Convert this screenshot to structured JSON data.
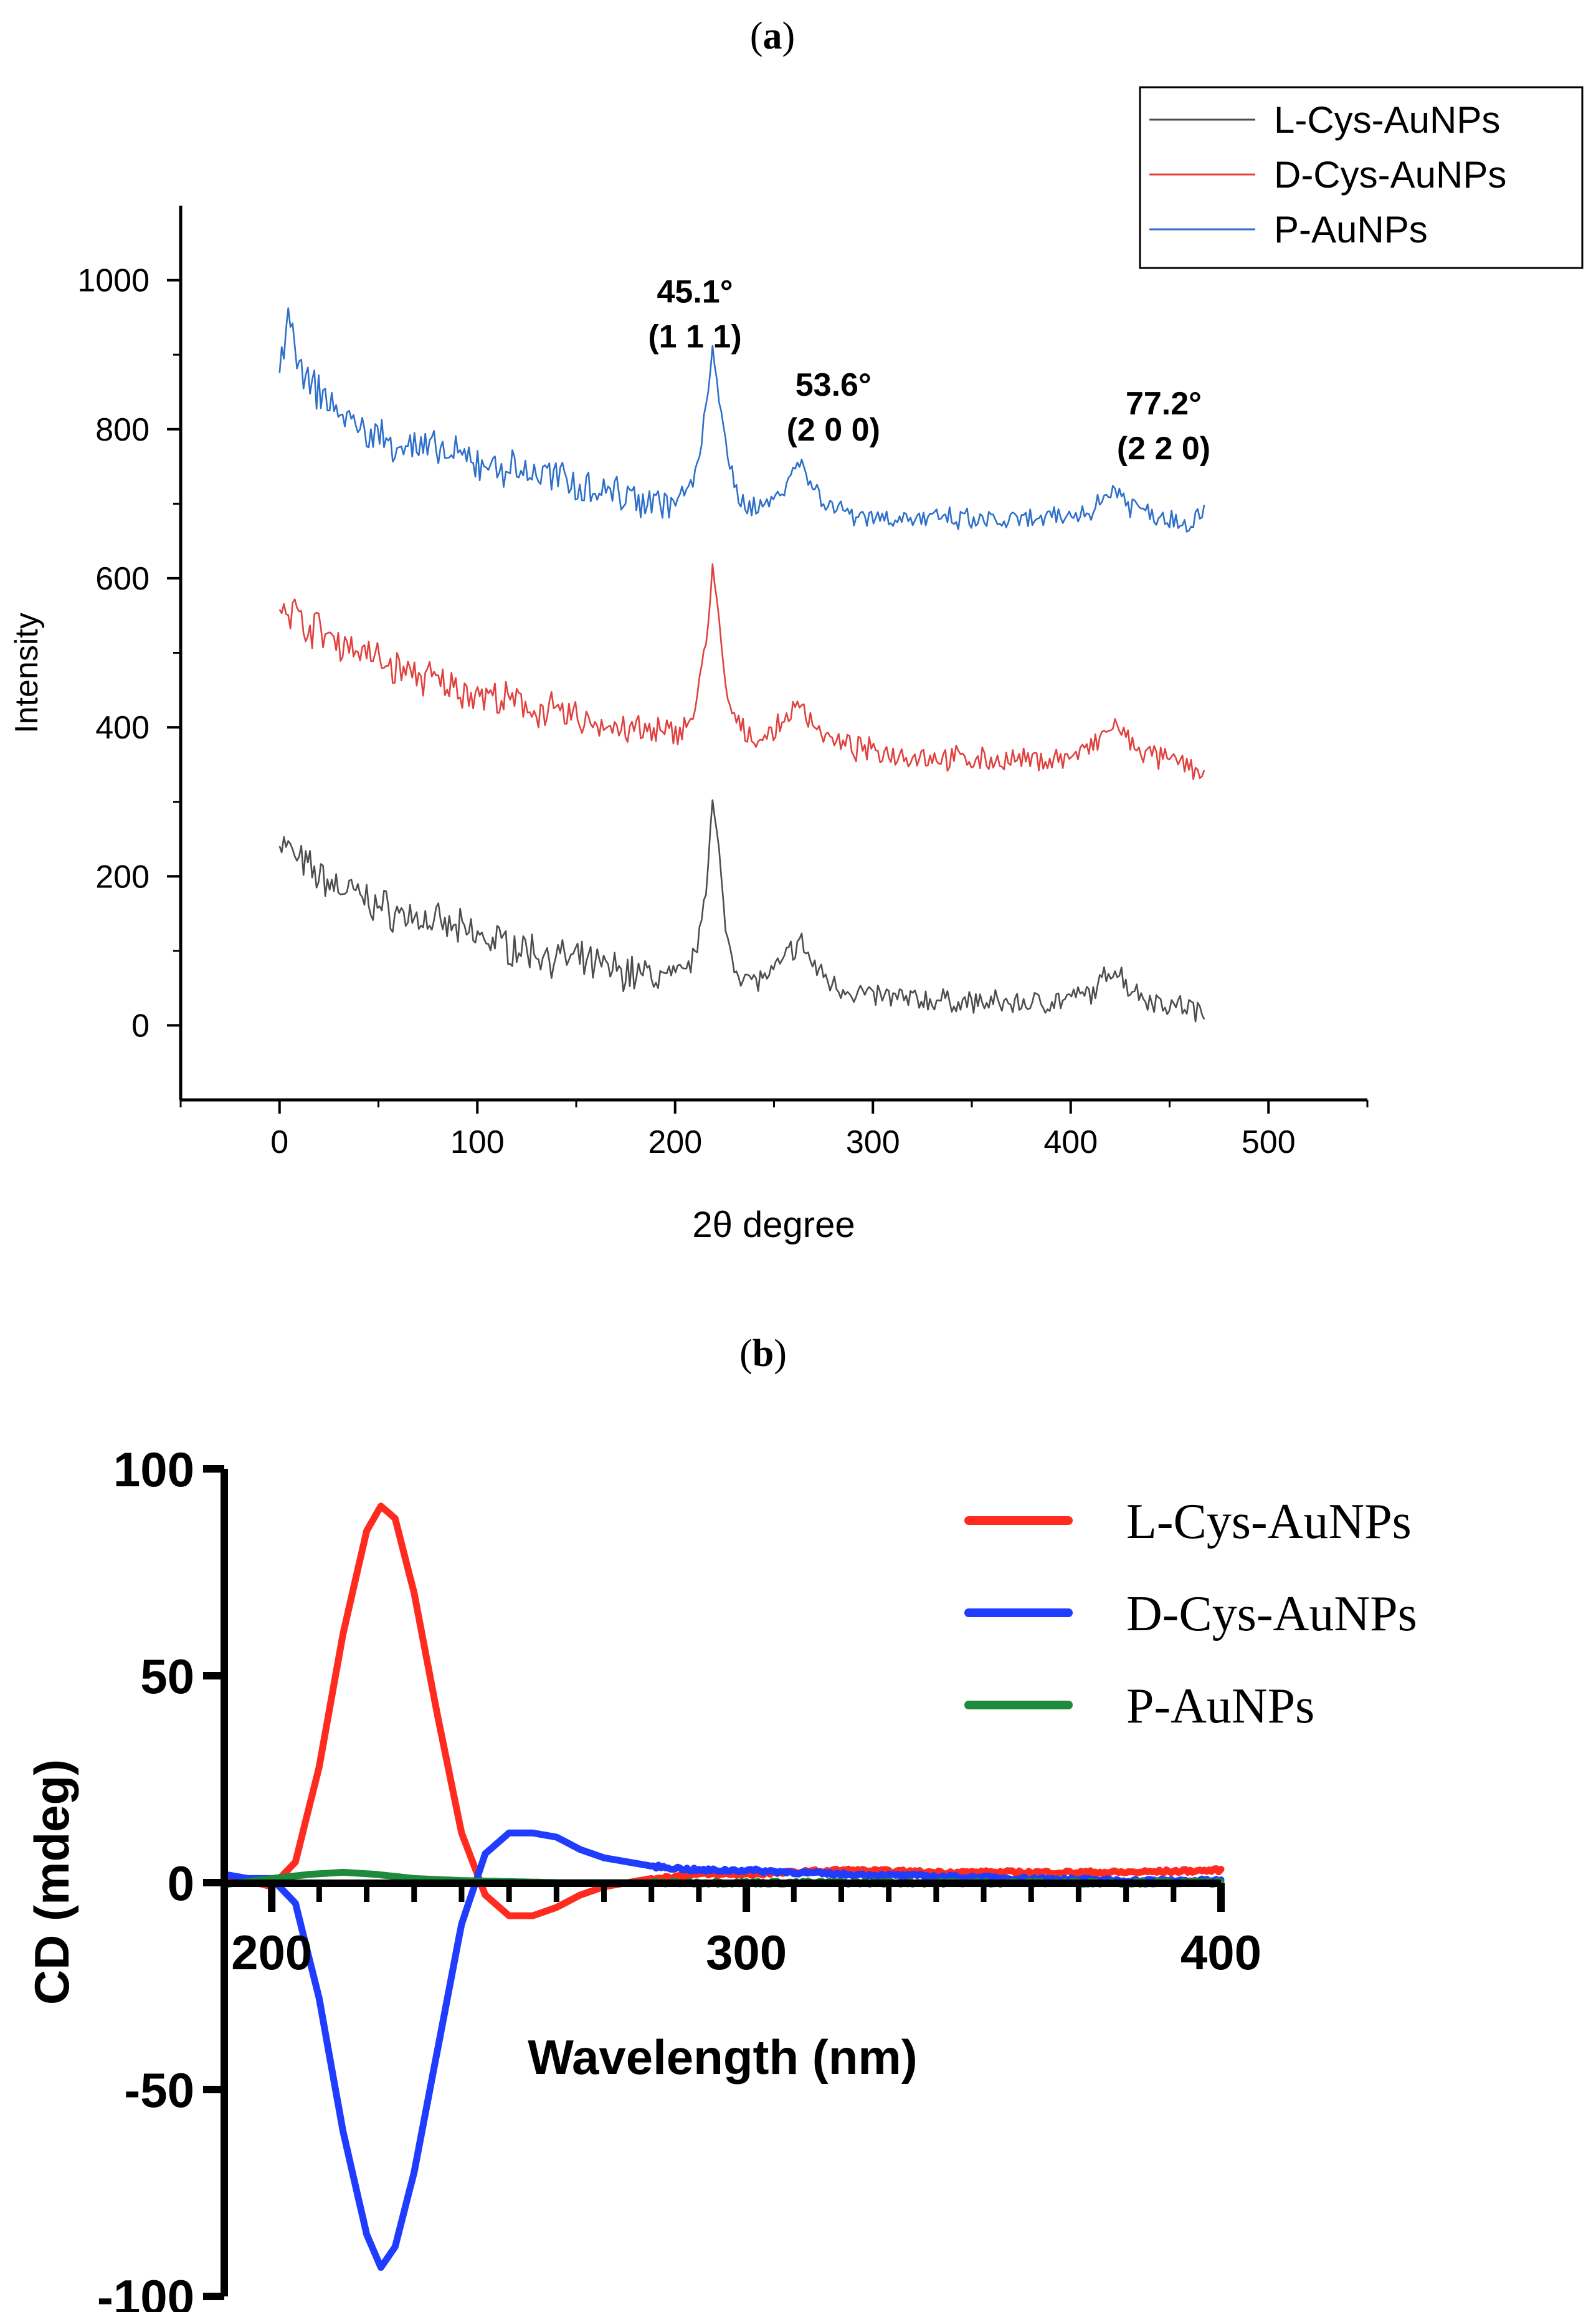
{
  "chart_data": [
    {
      "panel_label": "(a)",
      "panel_letter": "a",
      "type": "line",
      "xlabel": "2θ degree",
      "ylabel": "Intensity",
      "xlim": [
        -50,
        550
      ],
      "ylim": [
        -100,
        1100
      ],
      "x_ticks": [
        "0",
        "100",
        "200",
        "300",
        "400",
        "500"
      ],
      "y_ticks": [
        "0",
        "200",
        "400",
        "600",
        "800",
        "1000"
      ],
      "grid": false,
      "legend_position": "top-right",
      "annotations": [
        {
          "line1": "45.1°",
          "line2": "(1 1 1)",
          "x": 210,
          "y": 970
        },
        {
          "line1": "53.6°",
          "line2": "(2 0 0)",
          "x": 280,
          "y": 845
        },
        {
          "line1": "77.2°",
          "line2": "(2 2 0)",
          "x": 447,
          "y": 820
        }
      ],
      "series": [
        {
          "name": "L-Cys-AuNPs",
          "color": "#4d4d4d",
          "offset": 0,
          "points": [
            [
              0,
              250
            ],
            [
              10,
              220
            ],
            [
              20,
              200
            ],
            [
              30,
              185
            ],
            [
              40,
              175
            ],
            [
              50,
              160
            ],
            [
              60,
              150
            ],
            [
              70,
              145
            ],
            [
              80,
              135
            ],
            [
              90,
              128
            ],
            [
              100,
              120
            ],
            [
              110,
              112
            ],
            [
              120,
              105
            ],
            [
              130,
              98
            ],
            [
              140,
              92
            ],
            [
              150,
              86
            ],
            [
              160,
              80
            ],
            [
              170,
              75
            ],
            [
              180,
              70
            ],
            [
              190,
              66
            ],
            [
              200,
              64
            ],
            [
              210,
              90
            ],
            [
              216,
              200
            ],
            [
              219,
              300
            ],
            [
              222,
              230
            ],
            [
              226,
              120
            ],
            [
              232,
              70
            ],
            [
              240,
              60
            ],
            [
              250,
              70
            ],
            [
              258,
              100
            ],
            [
              264,
              110
            ],
            [
              270,
              80
            ],
            [
              280,
              55
            ],
            [
              290,
              45
            ],
            [
              300,
              40
            ],
            [
              320,
              35
            ],
            [
              340,
              32
            ],
            [
              360,
              30
            ],
            [
              380,
              30
            ],
            [
              400,
              35
            ],
            [
              412,
              45
            ],
            [
              422,
              80
            ],
            [
              430,
              50
            ],
            [
              440,
              35
            ],
            [
              450,
              28
            ],
            [
              460,
              25
            ],
            [
              468,
              10
            ]
          ]
        },
        {
          "name": "D-Cys-AuNPs",
          "color": "#e0413e",
          "offset": 0,
          "points": [
            [
              0,
              575
            ],
            [
              10,
              545
            ],
            [
              20,
              530
            ],
            [
              30,
              515
            ],
            [
              40,
              505
            ],
            [
              50,
              490
            ],
            [
              60,
              478
            ],
            [
              70,
              470
            ],
            [
              80,
              460
            ],
            [
              90,
              452
            ],
            [
              100,
              445
            ],
            [
              110,
              438
            ],
            [
              120,
              430
            ],
            [
              130,
              425
            ],
            [
              140,
              418
            ],
            [
              150,
              412
            ],
            [
              160,
              406
            ],
            [
              170,
              400
            ],
            [
              180,
              395
            ],
            [
              190,
              390
            ],
            [
              200,
              390
            ],
            [
              210,
              420
            ],
            [
              216,
              520
            ],
            [
              219,
              620
            ],
            [
              222,
              540
            ],
            [
              226,
              440
            ],
            [
              232,
              400
            ],
            [
              240,
              385
            ],
            [
              250,
              392
            ],
            [
              258,
              420
            ],
            [
              264,
              430
            ],
            [
              270,
              405
            ],
            [
              280,
              380
            ],
            [
              290,
              372
            ],
            [
              300,
              368
            ],
            [
              320,
              362
            ],
            [
              340,
              358
            ],
            [
              360,
              356
            ],
            [
              380,
              355
            ],
            [
              400,
              360
            ],
            [
              412,
              375
            ],
            [
              422,
              405
            ],
            [
              430,
              378
            ],
            [
              440,
              362
            ],
            [
              450,
              355
            ],
            [
              460,
              350
            ],
            [
              468,
              335
            ]
          ]
        },
        {
          "name": "P-AuNPs",
          "color": "#2e6fc9",
          "offset": 0,
          "points": [
            [
              0,
              870
            ],
            [
              6,
              960
            ],
            [
              10,
              870
            ],
            [
              20,
              850
            ],
            [
              30,
              825
            ],
            [
              40,
              800
            ],
            [
              50,
              790
            ],
            [
              60,
              780
            ],
            [
              70,
              775
            ],
            [
              80,
              770
            ],
            [
              90,
              762
            ],
            [
              100,
              755
            ],
            [
              110,
              750
            ],
            [
              120,
              745
            ],
            [
              130,
              740
            ],
            [
              140,
              735
            ],
            [
              150,
              728
            ],
            [
              160,
              722
            ],
            [
              170,
              715
            ],
            [
              180,
              710
            ],
            [
              190,
              705
            ],
            [
              200,
              700
            ],
            [
              210,
              730
            ],
            [
              216,
              830
            ],
            [
              219,
              920
            ],
            [
              222,
              850
            ],
            [
              226,
              760
            ],
            [
              232,
              710
            ],
            [
              240,
              695
            ],
            [
              250,
              705
            ],
            [
              258,
              740
            ],
            [
              264,
              755
            ],
            [
              270,
              720
            ],
            [
              280,
              695
            ],
            [
              290,
              688
            ],
            [
              300,
              683
            ],
            [
              320,
              680
            ],
            [
              340,
              678
            ],
            [
              360,
              676
            ],
            [
              380,
              677
            ],
            [
              400,
              682
            ],
            [
              412,
              695
            ],
            [
              422,
              722
            ],
            [
              430,
              700
            ],
            [
              440,
              688
            ],
            [
              450,
              680
            ],
            [
              460,
              676
            ],
            [
              468,
              690
            ]
          ]
        }
      ]
    },
    {
      "panel_label": "(b)",
      "panel_letter": "b",
      "type": "line",
      "xlabel": "Wavelength (nm)",
      "ylabel": "CD (mdeg)",
      "xlim": [
        190,
        400
      ],
      "ylim": [
        -100,
        100
      ],
      "x_ticks": [
        "200",
        "300",
        "400"
      ],
      "y_ticks": [
        "100",
        "50",
        "0",
        "-50",
        "-100"
      ],
      "grid": false,
      "legend_position": "top-right",
      "series": [
        {
          "name": "L-Cys-AuNPs",
          "color": "#ff2b1f",
          "points": [
            [
              190,
              1
            ],
            [
              195,
              0.5
            ],
            [
              200,
              -1
            ],
            [
              205,
              5
            ],
            [
              210,
              28
            ],
            [
              215,
              60
            ],
            [
              220,
              85
            ],
            [
              223,
              91
            ],
            [
              226,
              88
            ],
            [
              230,
              70
            ],
            [
              235,
              40
            ],
            [
              240,
              12
            ],
            [
              245,
              -3
            ],
            [
              250,
              -8
            ],
            [
              255,
              -8
            ],
            [
              260,
              -6
            ],
            [
              265,
              -3
            ],
            [
              270,
              -1
            ],
            [
              280,
              1
            ],
            [
              290,
              2
            ],
            [
              300,
              2
            ],
            [
              320,
              3
            ],
            [
              340,
              2.5
            ],
            [
              360,
              2.5
            ],
            [
              380,
              2.5
            ],
            [
              400,
              3
            ]
          ]
        },
        {
          "name": "D-Cys-AuNPs",
          "color": "#1f3cff",
          "points": [
            [
              190,
              2
            ],
            [
              195,
              1
            ],
            [
              200,
              1
            ],
            [
              205,
              -5
            ],
            [
              210,
              -28
            ],
            [
              215,
              -60
            ],
            [
              220,
              -85
            ],
            [
              223,
              -93
            ],
            [
              226,
              -88
            ],
            [
              230,
              -70
            ],
            [
              235,
              -40
            ],
            [
              240,
              -10
            ],
            [
              245,
              7
            ],
            [
              250,
              12
            ],
            [
              255,
              12
            ],
            [
              260,
              11
            ],
            [
              265,
              8
            ],
            [
              270,
              6
            ],
            [
              280,
              4
            ],
            [
              290,
              3
            ],
            [
              300,
              3
            ],
            [
              320,
              2
            ],
            [
              340,
              1.5
            ],
            [
              360,
              1
            ],
            [
              380,
              0.5
            ],
            [
              400,
              0.5
            ]
          ]
        },
        {
          "name": "P-AuNPs",
          "color": "#1e8a3c",
          "points": [
            [
              190,
              -0.5
            ],
            [
              200,
              1
            ],
            [
              208,
              2
            ],
            [
              215,
              2.5
            ],
            [
              222,
              2
            ],
            [
              230,
              1
            ],
            [
              240,
              0.5
            ],
            [
              260,
              0
            ],
            [
              300,
              0
            ],
            [
              340,
              0
            ],
            [
              400,
              0
            ]
          ]
        }
      ]
    }
  ]
}
